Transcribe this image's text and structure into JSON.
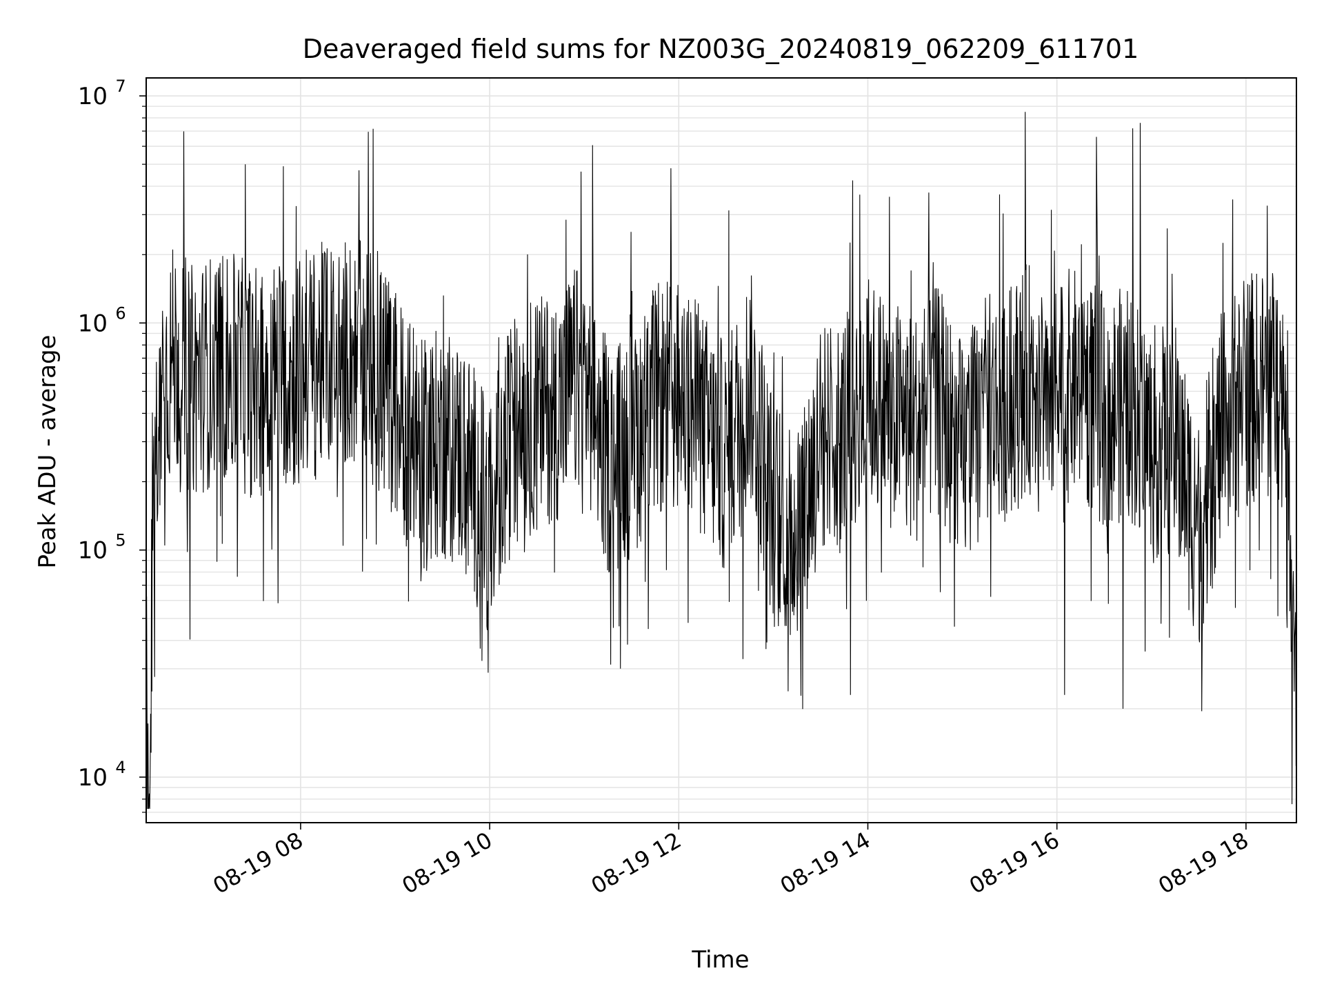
{
  "chart_data": {
    "type": "line",
    "title": "Deaveraged field sums for NZ003G_20240819_062209_611701",
    "xlabel": "Time",
    "ylabel": "Peak ADU - average",
    "yscale": "log",
    "ylim": [
      6300,
      12000000
    ],
    "y_ticks": [
      {
        "value": 10000,
        "base": "10",
        "exp": "4"
      },
      {
        "value": 100000,
        "base": "10",
        "exp": "5"
      },
      {
        "value": 1000000,
        "base": "10",
        "exp": "6"
      },
      {
        "value": 10000000,
        "base": "10",
        "exp": "7"
      }
    ],
    "xlim": [
      "2024-08-19 06:22",
      "2024-08-19 18:32"
    ],
    "x_ticks": [
      {
        "value": "2024-08-19 08:00",
        "label": "08-19 08"
      },
      {
        "value": "2024-08-19 10:00",
        "label": "08-19 10"
      },
      {
        "value": "2024-08-19 12:00",
        "label": "08-19 12"
      },
      {
        "value": "2024-08-19 14:00",
        "label": "08-19 14"
      },
      {
        "value": "2024-08-19 16:00",
        "label": "08-19 16"
      },
      {
        "value": "2024-08-19 18:00",
        "label": "08-19 18"
      }
    ],
    "grid": true,
    "line_color": "#000000",
    "grid_color": "#e3e3e3",
    "series": [
      {
        "x": [
          "2024-08-19 06:22",
          "2024-08-19 06:24",
          "2024-08-19 06:25",
          "2024-08-19 06:26",
          "2024-08-19 06:28",
          "2024-08-19 06:30",
          "2024-08-19 06:35",
          "2024-08-19 06:40",
          "2024-08-19 06:45",
          "2024-08-19 06:50",
          "2024-08-19 07:00",
          "2024-08-19 07:10",
          "2024-08-19 07:20",
          "2024-08-19 07:30",
          "2024-08-19 07:45",
          "2024-08-19 08:00",
          "2024-08-19 08:15",
          "2024-08-19 08:30",
          "2024-08-19 08:45",
          "2024-08-19 09:00",
          "2024-08-19 09:15",
          "2024-08-19 09:30",
          "2024-08-19 09:45",
          "2024-08-19 10:00",
          "2024-08-19 10:15",
          "2024-08-19 10:30",
          "2024-08-19 10:45",
          "2024-08-19 11:00",
          "2024-08-19 11:15",
          "2024-08-19 11:30",
          "2024-08-19 11:45",
          "2024-08-19 12:00",
          "2024-08-19 12:15",
          "2024-08-19 12:30",
          "2024-08-19 12:45",
          "2024-08-19 13:00",
          "2024-08-19 13:15",
          "2024-08-19 13:30",
          "2024-08-19 13:45",
          "2024-08-19 14:00",
          "2024-08-19 14:15",
          "2024-08-19 14:30",
          "2024-08-19 14:45",
          "2024-08-19 15:00",
          "2024-08-19 15:15",
          "2024-08-19 15:30",
          "2024-08-19 15:45",
          "2024-08-19 16:00",
          "2024-08-19 16:15",
          "2024-08-19 16:30",
          "2024-08-19 16:45",
          "2024-08-19 17:00",
          "2024-08-19 17:15",
          "2024-08-19 17:30",
          "2024-08-19 17:45",
          "2024-08-19 18:00",
          "2024-08-19 18:15",
          "2024-08-19 18:25",
          "2024-08-19 18:32"
        ],
        "y": [
          30000,
          9000,
          12000,
          80000,
          200000,
          500000,
          600000,
          700000,
          650000,
          550000,
          600000,
          650000,
          600000,
          550000,
          600000,
          600000,
          700000,
          750000,
          650000,
          450000,
          250000,
          300000,
          250000,
          130000,
          350000,
          400000,
          450000,
          600000,
          250000,
          300000,
          450000,
          500000,
          350000,
          250000,
          550000,
          150000,
          120000,
          300000,
          350000,
          500000,
          400000,
          350000,
          450000,
          250000,
          400000,
          450000,
          600000,
          500000,
          550000,
          400000,
          450000,
          300000,
          300000,
          120000,
          350000,
          500000,
          550000,
          500000,
          28000
        ]
      }
    ],
    "annotations": [
      {
        "x": "2024-08-19 07:25",
        "y": 5000000
      },
      {
        "x": "2024-08-19 07:49",
        "y": 4900000
      },
      {
        "x": "2024-08-19 08:37",
        "y": 4700000
      },
      {
        "x": "2024-08-19 11:55",
        "y": 4800000
      },
      {
        "x": "2024-08-19 13:49",
        "y": 23000
      },
      {
        "x": "2024-08-19 15:40",
        "y": 8500000
      },
      {
        "x": "2024-08-19 16:05",
        "y": 23000
      },
      {
        "x": "2024-08-19 16:25",
        "y": 6600000
      },
      {
        "x": "2024-08-19 16:42",
        "y": 20000
      },
      {
        "x": "2024-08-19 16:48",
        "y": 7200000
      },
      {
        "x": "2024-08-19 16:53",
        "y": 7600000
      },
      {
        "x": "2024-08-19 17:32",
        "y": 19500
      }
    ]
  }
}
